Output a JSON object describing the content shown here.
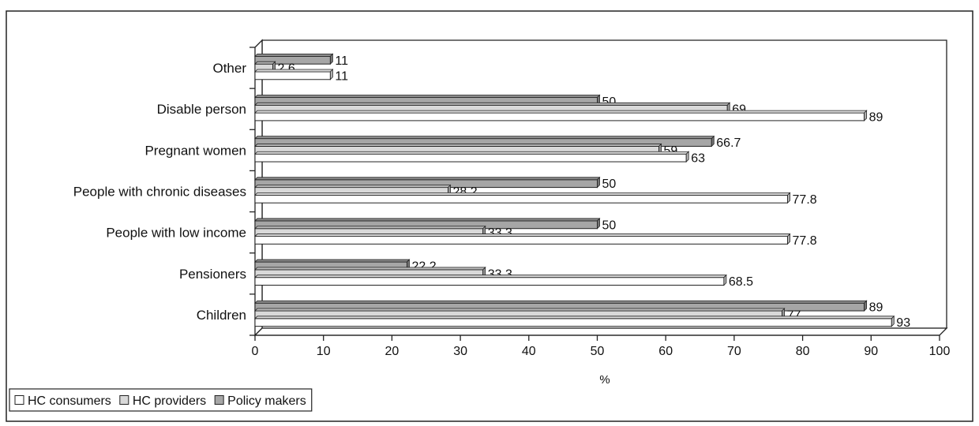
{
  "chart_data": {
    "type": "bar",
    "orientation": "horizontal",
    "categories": [
      "Other",
      "Disable person",
      "Pregnant women",
      "People with chronic diseases",
      "People with low income",
      "Pensioners",
      "Children"
    ],
    "series": [
      {
        "name": "HC consumers",
        "color": "#ffffff",
        "values": [
          11,
          89,
          63,
          77.8,
          77.8,
          68.5,
          93
        ],
        "labels": [
          "11",
          "89",
          "63",
          "77.8",
          "77.8",
          "68.5",
          "93"
        ]
      },
      {
        "name": "HC providers",
        "color": "#d9d9d9",
        "values": [
          2.6,
          69,
          59,
          28.2,
          33.3,
          33.3,
          77
        ],
        "labels": [
          "2.6",
          "69",
          "59",
          "28.2",
          "33.3",
          "33.3",
          "77"
        ]
      },
      {
        "name": "Policy makers",
        "color": "#a6a6a6",
        "values": [
          11,
          50,
          66.7,
          50,
          50,
          22.2,
          89
        ],
        "labels": [
          "11",
          "50",
          "66.7",
          "50",
          "50",
          "22.2",
          "89"
        ]
      }
    ],
    "xlabel": "%",
    "xlim": [
      0,
      100
    ],
    "xticks": [
      "0",
      "10",
      "20",
      "30",
      "40",
      "50",
      "60",
      "70",
      "80",
      "90",
      "100"
    ],
    "grid": false,
    "legend_position": "bottom-left",
    "style": "3d"
  }
}
